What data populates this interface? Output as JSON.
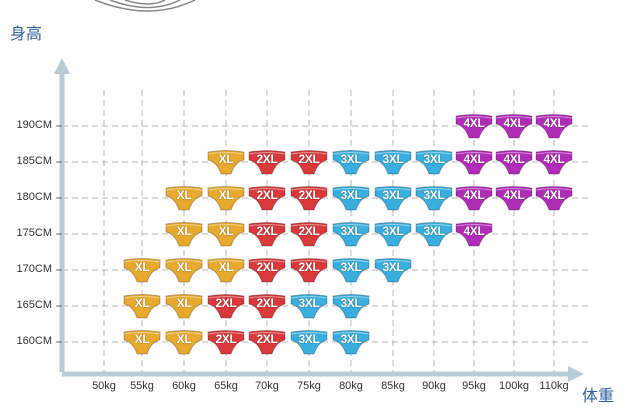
{
  "chart_data": {
    "type": "scatter",
    "ylabel": "身高",
    "xlabel": "体重",
    "x_ticks": [
      "50kg",
      "55kg",
      "60kg",
      "65kg",
      "70kg",
      "75kg",
      "80kg",
      "85kg",
      "90kg",
      "95kg",
      "100kg",
      "110kg"
    ],
    "y_ticks": [
      "190CM",
      "185CM",
      "180CM",
      "175CM",
      "170CM",
      "165CM",
      "160CM"
    ],
    "grid": true,
    "size_colors": {
      "XL": "#e7a92e",
      "2XL": "#d9393b",
      "3XL": "#3aaede",
      "4XL": "#b12cb6"
    },
    "points": [
      {
        "x": "55kg",
        "y": "170CM",
        "size": "XL"
      },
      {
        "x": "55kg",
        "y": "165CM",
        "size": "XL"
      },
      {
        "x": "55kg",
        "y": "160CM",
        "size": "XL"
      },
      {
        "x": "60kg",
        "y": "180CM",
        "size": "XL"
      },
      {
        "x": "60kg",
        "y": "175CM",
        "size": "XL"
      },
      {
        "x": "60kg",
        "y": "170CM",
        "size": "XL"
      },
      {
        "x": "60kg",
        "y": "165CM",
        "size": "XL"
      },
      {
        "x": "60kg",
        "y": "160CM",
        "size": "XL"
      },
      {
        "x": "65kg",
        "y": "185CM",
        "size": "XL"
      },
      {
        "x": "65kg",
        "y": "180CM",
        "size": "XL"
      },
      {
        "x": "65kg",
        "y": "175CM",
        "size": "XL"
      },
      {
        "x": "65kg",
        "y": "170CM",
        "size": "XL"
      },
      {
        "x": "65kg",
        "y": "165CM",
        "size": "2XL"
      },
      {
        "x": "65kg",
        "y": "160CM",
        "size": "2XL"
      },
      {
        "x": "70kg",
        "y": "185CM",
        "size": "2XL"
      },
      {
        "x": "70kg",
        "y": "180CM",
        "size": "2XL"
      },
      {
        "x": "70kg",
        "y": "175CM",
        "size": "2XL"
      },
      {
        "x": "70kg",
        "y": "170CM",
        "size": "2XL"
      },
      {
        "x": "70kg",
        "y": "165CM",
        "size": "2XL"
      },
      {
        "x": "70kg",
        "y": "160CM",
        "size": "2XL"
      },
      {
        "x": "75kg",
        "y": "185CM",
        "size": "2XL"
      },
      {
        "x": "75kg",
        "y": "180CM",
        "size": "2XL"
      },
      {
        "x": "75kg",
        "y": "175CM",
        "size": "2XL"
      },
      {
        "x": "75kg",
        "y": "170CM",
        "size": "2XL"
      },
      {
        "x": "75kg",
        "y": "165CM",
        "size": "3XL"
      },
      {
        "x": "75kg",
        "y": "160CM",
        "size": "3XL"
      },
      {
        "x": "80kg",
        "y": "185CM",
        "size": "3XL"
      },
      {
        "x": "80kg",
        "y": "180CM",
        "size": "3XL"
      },
      {
        "x": "80kg",
        "y": "175CM",
        "size": "3XL"
      },
      {
        "x": "80kg",
        "y": "170CM",
        "size": "3XL"
      },
      {
        "x": "80kg",
        "y": "165CM",
        "size": "3XL"
      },
      {
        "x": "80kg",
        "y": "160CM",
        "size": "3XL"
      },
      {
        "x": "85kg",
        "y": "185CM",
        "size": "3XL"
      },
      {
        "x": "85kg",
        "y": "180CM",
        "size": "3XL"
      },
      {
        "x": "85kg",
        "y": "175CM",
        "size": "3XL"
      },
      {
        "x": "85kg",
        "y": "170CM",
        "size": "3XL"
      },
      {
        "x": "90kg",
        "y": "185CM",
        "size": "3XL"
      },
      {
        "x": "90kg",
        "y": "180CM",
        "size": "3XL"
      },
      {
        "x": "90kg",
        "y": "175CM",
        "size": "3XL"
      },
      {
        "x": "95kg",
        "y": "190CM",
        "size": "4XL"
      },
      {
        "x": "95kg",
        "y": "185CM",
        "size": "4XL"
      },
      {
        "x": "95kg",
        "y": "180CM",
        "size": "4XL"
      },
      {
        "x": "95kg",
        "y": "175CM",
        "size": "4XL"
      },
      {
        "x": "100kg",
        "y": "190CM",
        "size": "4XL"
      },
      {
        "x": "100kg",
        "y": "185CM",
        "size": "4XL"
      },
      {
        "x": "100kg",
        "y": "180CM",
        "size": "4XL"
      },
      {
        "x": "110kg",
        "y": "190CM",
        "size": "4XL"
      },
      {
        "x": "110kg",
        "y": "185CM",
        "size": "4XL"
      },
      {
        "x": "110kg",
        "y": "180CM",
        "size": "4XL"
      }
    ]
  }
}
